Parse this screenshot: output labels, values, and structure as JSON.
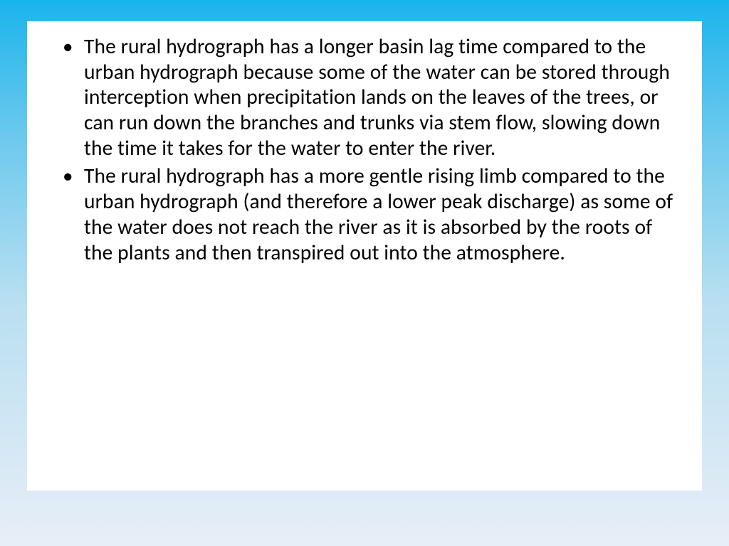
{
  "slide": {
    "background": {
      "gradient_top": "#1ab4ec",
      "gradient_bottom": "#e8eef7"
    },
    "content_box": {
      "background_color": "#ffffff"
    },
    "bullets": [
      "The rural hydrograph has a longer basin lag time compared to the urban hydrograph because some of the water can be stored through interception when precipitation lands on the leaves of the trees, or can run down the branches and trunks via stem flow, slowing down the time it takes for the water to enter the river.",
      "The rural hydrograph has a more gentle rising limb compared to the urban hydrograph (and therefore a lower peak discharge) as some of the water does not reach the river as it is absorbed by the roots of the plants and then transpired out into the atmosphere."
    ],
    "typography": {
      "font_family": "Calibri",
      "font_size_pt": 28,
      "color": "#000000",
      "line_height": 1.21
    }
  }
}
